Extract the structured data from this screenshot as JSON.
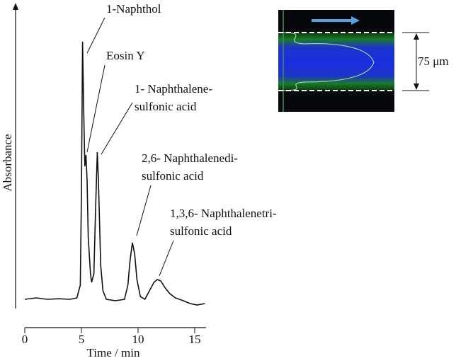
{
  "chart_data": {
    "type": "line",
    "x_label": "Time / min",
    "y_label": "Absorbance",
    "x": [
      0,
      1,
      2,
      3,
      4,
      4.6,
      4.9,
      5.0,
      5.1,
      5.2,
      5.3,
      5.4,
      5.5,
      5.6,
      5.8,
      5.9,
      6.1,
      6.25,
      6.4,
      6.5,
      6.7,
      6.9,
      7.2,
      8,
      8.8,
      9.1,
      9.3,
      9.5,
      9.7,
      9.9,
      10.2,
      10.6,
      11.0,
      11.4,
      11.7,
      12.0,
      12.4,
      12.8,
      13.3,
      14,
      14.6,
      15.2,
      15.9
    ],
    "values": [
      3,
      3.5,
      3,
      3.2,
      3,
      3.5,
      8,
      40,
      94,
      70,
      50,
      54,
      45,
      25,
      12,
      9,
      12,
      35,
      55,
      45,
      15,
      6,
      3,
      2.5,
      3,
      8,
      17,
      23,
      19,
      10,
      4,
      3,
      6,
      9,
      10,
      9.5,
      7,
      5,
      3.5,
      2.5,
      1.5,
      1,
      1.5
    ],
    "color": "#111111",
    "xlim": [
      0,
      16
    ],
    "xticks": [
      0,
      5,
      10,
      15
    ],
    "ylim": [
      0,
      100
    ],
    "annotations": [
      {
        "lines": [
          "1-Naphthol"
        ]
      },
      {
        "lines": [
          "Eosin Y"
        ]
      },
      {
        "lines": [
          "1- Naphthalene-",
          "sulfonic acid"
        ]
      },
      {
        "lines": [
          "2,6- Naphthalenedi-",
          "sulfonic acid"
        ]
      },
      {
        "lines": [
          "1,3,6- Naphthalenetri-",
          "sulfonic acid"
        ]
      }
    ]
  },
  "inset": {
    "label": "75 μm"
  }
}
